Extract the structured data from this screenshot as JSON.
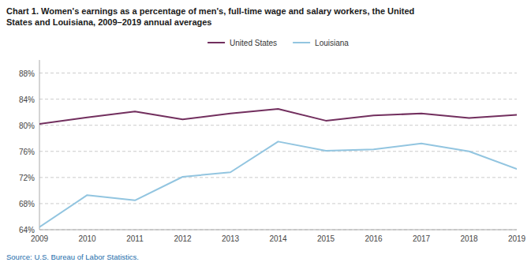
{
  "chart_data": {
    "type": "line",
    "title": "Chart 1. Women's earnings as a percentage of men's, full-time wage and salary workers, the United\nStates and Louisiana, 2009–2019  annual averages",
    "x": [
      2009,
      2010,
      2011,
      2012,
      2013,
      2014,
      2015,
      2016,
      2017,
      2018,
      2019
    ],
    "series": [
      {
        "name": "United States",
        "color": "#722F5E",
        "values": [
          80.2,
          81.2,
          82.1,
          80.9,
          81.8,
          82.5,
          80.7,
          81.5,
          81.8,
          81.1,
          81.6
        ]
      },
      {
        "name": "Louisiana",
        "color": "#92C5E0",
        "values": [
          64.4,
          69.3,
          68.5,
          72.1,
          72.8,
          77.5,
          76.1,
          76.3,
          77.2,
          76.0,
          73.3
        ]
      }
    ],
    "xlim": [
      2009,
      2019
    ],
    "xticks": [
      2009,
      2010,
      2011,
      2012,
      2013,
      2014,
      2015,
      2016,
      2017,
      2018,
      2019
    ],
    "ylim": [
      64,
      90
    ],
    "yticks": [
      {
        "value": 64,
        "label": "64%"
      },
      {
        "value": 68,
        "label": "68%"
      },
      {
        "value": 72,
        "label": "72%"
      },
      {
        "value": 76,
        "label": "76%"
      },
      {
        "value": 80,
        "label": "80%"
      },
      {
        "value": 84,
        "label": "84%"
      },
      {
        "value": 88,
        "label": "88%"
      }
    ],
    "grid": true,
    "legend": "top",
    "annotations": [
      "Source:  U.S. Bureau of Labor Statistics."
    ]
  }
}
